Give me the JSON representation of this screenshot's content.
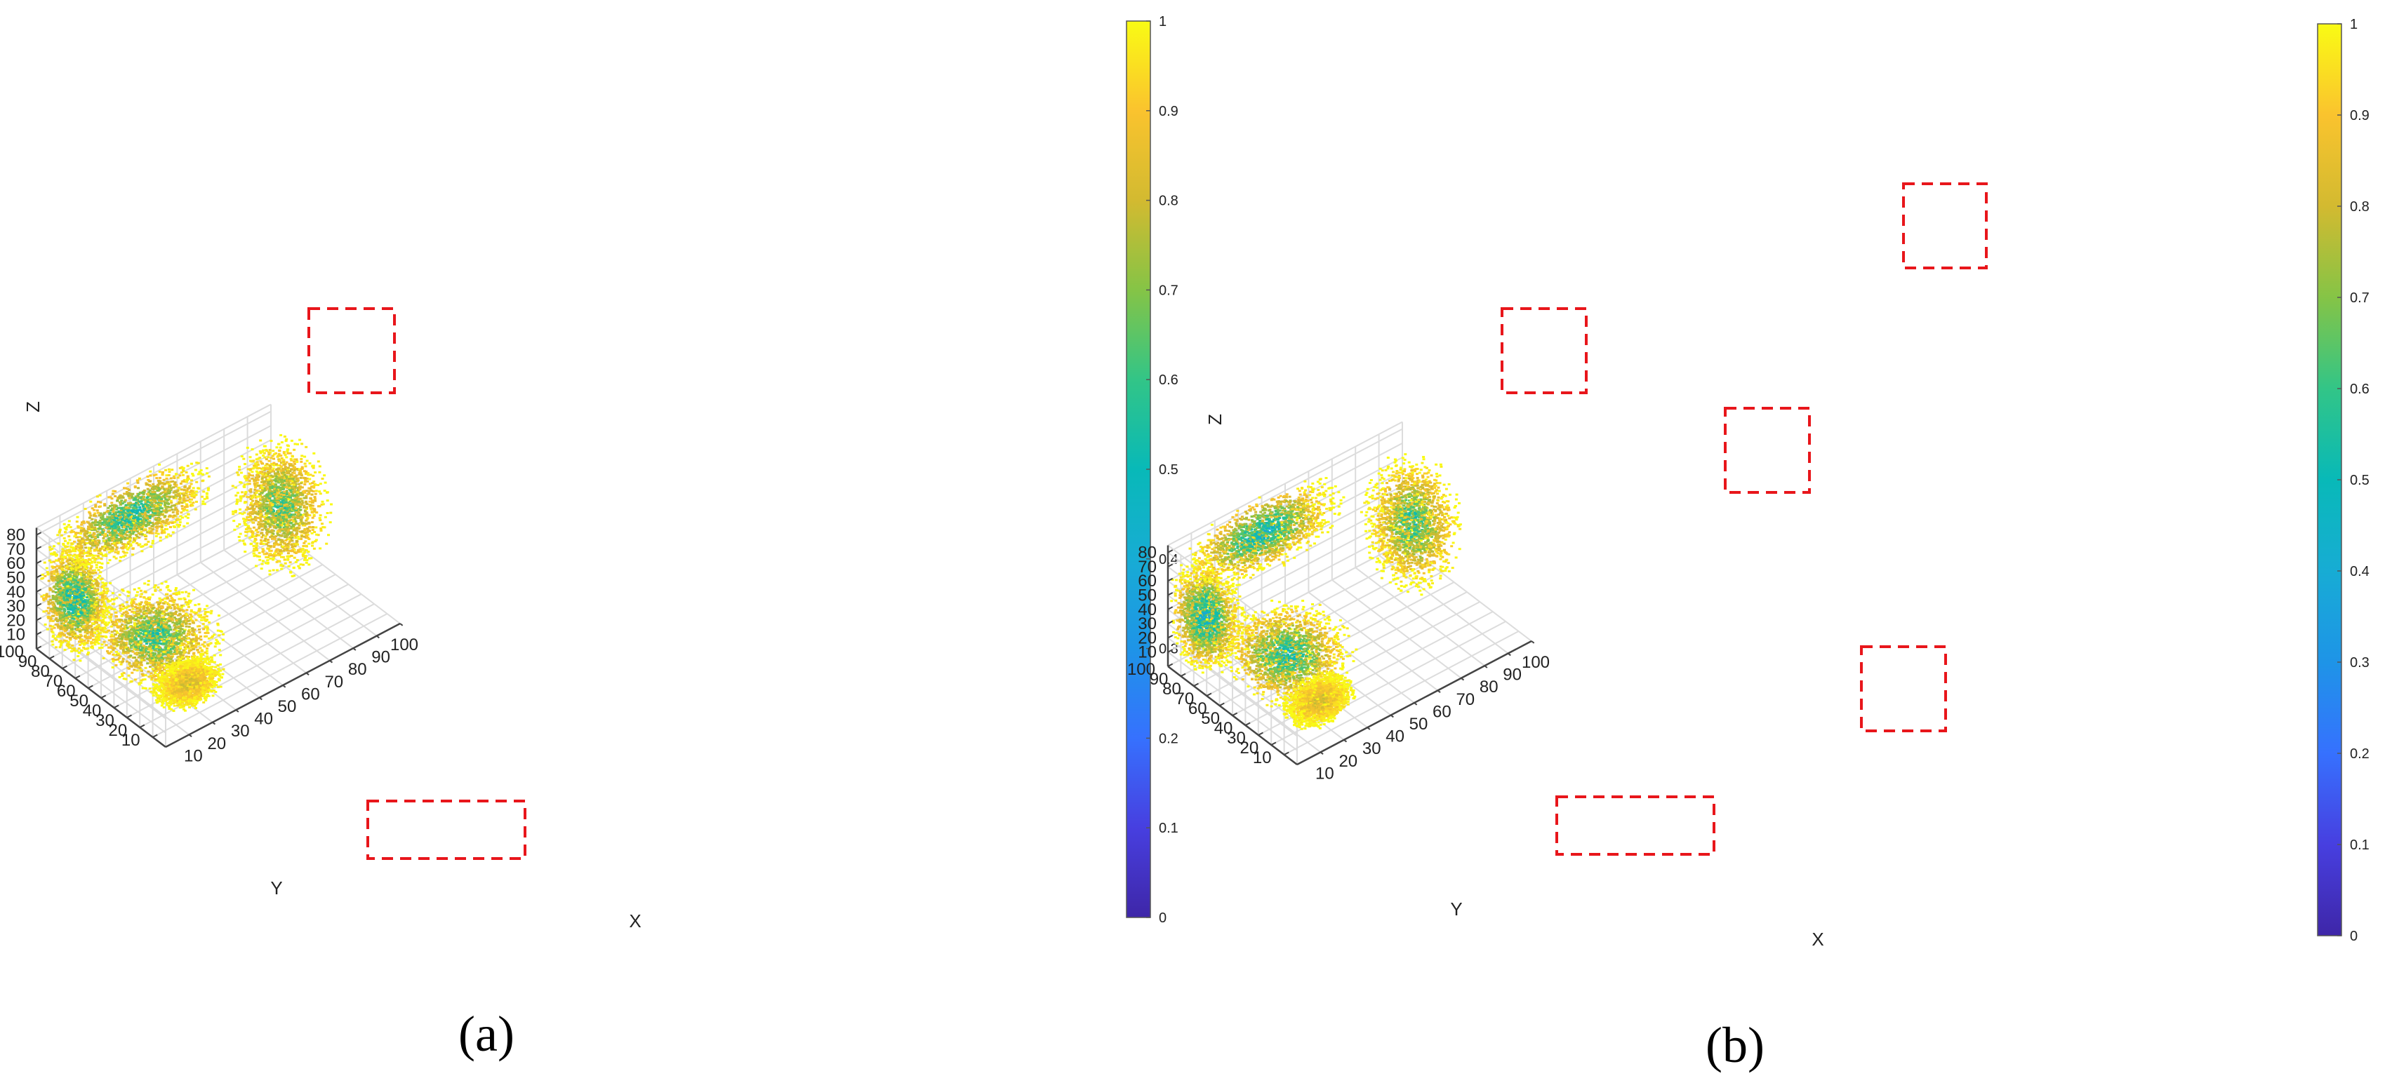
{
  "figure": {
    "panels": [
      {
        "caption": "(a)"
      },
      {
        "caption": "(b)"
      }
    ]
  },
  "chart_data": [
    {
      "type": "scatter",
      "subtype": "3d-scatter",
      "title": "",
      "xlabel": "X",
      "ylabel": "Y",
      "zlabel": "Z",
      "x_ticks": [
        "10",
        "20",
        "30",
        "40",
        "50",
        "60",
        "70",
        "80",
        "90",
        "100"
      ],
      "y_ticks": [
        "10",
        "20",
        "30",
        "40",
        "50",
        "60",
        "70",
        "80",
        "90",
        "100"
      ],
      "z_ticks": [
        "10",
        "20",
        "30",
        "40",
        "50",
        "60",
        "70",
        "80"
      ],
      "xlim": [
        0,
        100
      ],
      "ylim": [
        0,
        100
      ],
      "zlim": [
        0,
        85
      ],
      "grid": true,
      "colormap": "parula",
      "colorbar_ticks": [
        "0",
        "0.1",
        "0.2",
        "0.3",
        "0.4",
        "0.5",
        "0.6",
        "0.7",
        "0.8",
        "0.9",
        "1"
      ],
      "clim": [
        0,
        1
      ],
      "clusters": [
        {
          "x": 8,
          "y": 85,
          "z": 38,
          "sx": 5,
          "sy": 10,
          "sz": 17,
          "core": 0.35
        },
        {
          "x": 35,
          "y": 90,
          "z": 70,
          "sx": 15,
          "sy": 8,
          "sz": 10,
          "core": 0.4
        },
        {
          "x": 15,
          "y": 35,
          "z": 40,
          "sx": 10,
          "sy": 15,
          "sz": 11,
          "core": 0.45
        },
        {
          "x": 88,
          "y": 70,
          "z": 45,
          "sx": 7,
          "sy": 12,
          "sz": 20,
          "core": 0.5
        },
        {
          "x": 15,
          "y": 10,
          "z": 25,
          "sx": 6,
          "sy": 6,
          "sz": 6,
          "core": 0.75
        }
      ],
      "highlight_boxes": 2,
      "highlight_color": "#e8161b"
    },
    {
      "type": "scatter",
      "subtype": "3d-scatter",
      "title": "",
      "xlabel": "X",
      "ylabel": "Y",
      "zlabel": "Z",
      "x_ticks": [
        "10",
        "20",
        "30",
        "40",
        "50",
        "60",
        "70",
        "80",
        "90",
        "100"
      ],
      "y_ticks": [
        "10",
        "20",
        "30",
        "40",
        "50",
        "60",
        "70",
        "80",
        "90",
        "100"
      ],
      "z_ticks": [
        "10",
        "20",
        "30",
        "40",
        "50",
        "60",
        "70",
        "80"
      ],
      "xlim": [
        0,
        100
      ],
      "ylim": [
        0,
        100
      ],
      "zlim": [
        0,
        85
      ],
      "grid": true,
      "colormap": "parula",
      "colorbar_ticks": [
        "0",
        "0.1",
        "0.2",
        "0.3",
        "0.4",
        "0.5",
        "0.6",
        "0.7",
        "0.8",
        "0.9",
        "1"
      ],
      "clim": [
        0,
        1
      ],
      "clusters": [
        {
          "x": 8,
          "y": 85,
          "z": 38,
          "sx": 5,
          "sy": 10,
          "sz": 17,
          "core": 0.3
        },
        {
          "x": 35,
          "y": 90,
          "z": 70,
          "sx": 15,
          "sy": 8,
          "sz": 10,
          "core": 0.35
        },
        {
          "x": 15,
          "y": 35,
          "z": 40,
          "sx": 10,
          "sy": 15,
          "sz": 11,
          "core": 0.4
        },
        {
          "x": 88,
          "y": 70,
          "z": 45,
          "sx": 7,
          "sy": 12,
          "sz": 20,
          "core": 0.45
        },
        {
          "x": 15,
          "y": 10,
          "z": 25,
          "sx": 6,
          "sy": 6,
          "sz": 6,
          "core": 0.75
        }
      ],
      "highlight_boxes": 5,
      "highlight_color": "#e8161b"
    }
  ]
}
